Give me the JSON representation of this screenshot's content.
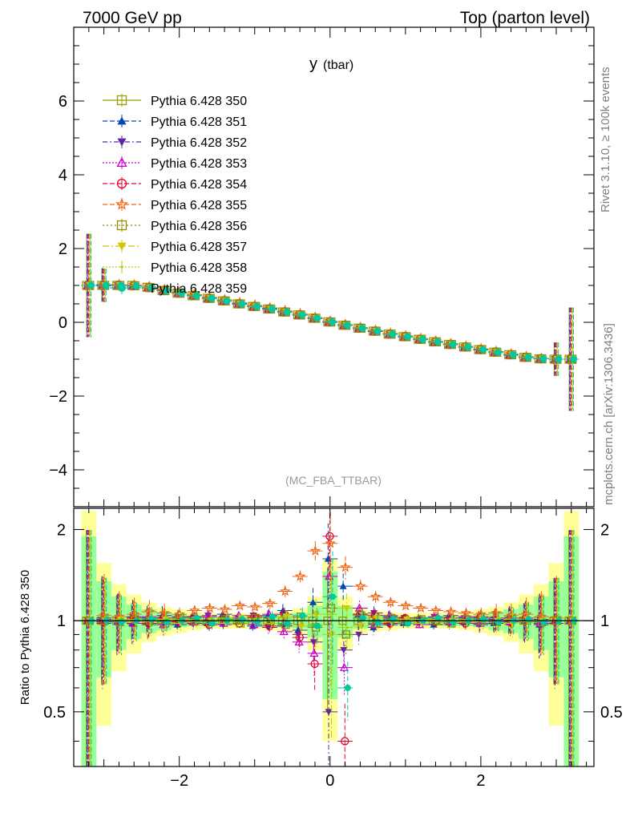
{
  "header": {
    "left": "7000 GeV pp",
    "right": "Top (parton level)"
  },
  "side_labels": {
    "top": "Rivet 3.1.10, ≥ 100k events",
    "bottom": "mcplots.cern.ch [arXiv:1306.3436]"
  },
  "analysis_label": "(MC_FBA_TTBAR)",
  "chart_data": [
    {
      "type": "scatter",
      "panel": "main",
      "title": "y",
      "title_suffix": "(tbar)",
      "xlim": [
        -3.4,
        3.5
      ],
      "ylim": [
        -5,
        8
      ],
      "yticks": [
        -4,
        -2,
        0,
        2,
        4,
        6
      ],
      "ytick_labels": [
        "−4",
        "−2",
        "0",
        "2",
        "4",
        "6"
      ],
      "xticks": [
        -2,
        0,
        2
      ],
      "grid": false,
      "legend_position": "top-left",
      "x": [
        -3.2,
        -3.0,
        -2.8,
        -2.6,
        -2.4,
        -2.2,
        -2.0,
        -1.8,
        -1.6,
        -1.4,
        -1.2,
        -1.0,
        -0.8,
        -0.6,
        -0.4,
        -0.2,
        0.0,
        0.2,
        0.4,
        0.6,
        0.8,
        1.0,
        1.2,
        1.4,
        1.6,
        1.8,
        2.0,
        2.2,
        2.4,
        2.6,
        2.8,
        3.0,
        3.2
      ],
      "series": [
        {
          "name": "Pythia 6.428 350",
          "color": "#999900",
          "marker": "open-square",
          "dash": "solid",
          "values": [
            1.0,
            1.0,
            1.0,
            1.0,
            0.95,
            0.86,
            0.79,
            0.72,
            0.65,
            0.58,
            0.5,
            0.43,
            0.36,
            0.28,
            0.2,
            0.11,
            0.01,
            -0.08,
            -0.16,
            -0.24,
            -0.32,
            -0.39,
            -0.46,
            -0.53,
            -0.6,
            -0.67,
            -0.74,
            -0.81,
            -0.88,
            -0.95,
            -0.99,
            -1.0,
            -1.0
          ]
        },
        {
          "name": "Pythia 6.428 351",
          "color": "#0046b4",
          "marker": "filled-triangle-up",
          "dash": "6,3",
          "values": [
            1.0,
            1.02,
            1.01,
            0.99,
            0.94,
            0.87,
            0.8,
            0.73,
            0.66,
            0.59,
            0.51,
            0.44,
            0.37,
            0.29,
            0.21,
            0.12,
            0.02,
            -0.07,
            -0.15,
            -0.23,
            -0.31,
            -0.38,
            -0.45,
            -0.52,
            -0.59,
            -0.66,
            -0.73,
            -0.8,
            -0.87,
            -0.94,
            -0.98,
            -1.0,
            -1.0
          ]
        },
        {
          "name": "Pythia 6.428 352",
          "color": "#5a28a0",
          "marker": "filled-triangle-down",
          "dash": "6,3,2,3",
          "values": [
            1.0,
            0.99,
            1.0,
            0.98,
            0.93,
            0.86,
            0.79,
            0.72,
            0.64,
            0.57,
            0.49,
            0.42,
            0.35,
            0.27,
            0.19,
            0.1,
            0.0,
            -0.09,
            -0.17,
            -0.25,
            -0.33,
            -0.4,
            -0.47,
            -0.54,
            -0.61,
            -0.68,
            -0.75,
            -0.82,
            -0.89,
            -0.96,
            -0.99,
            -1.0,
            -1.0
          ]
        },
        {
          "name": "Pythia 6.428 353",
          "color": "#c800c8",
          "marker": "open-triangle-up",
          "dash": "2,2",
          "values": [
            1.0,
            1.01,
            1.0,
            0.99,
            0.95,
            0.87,
            0.8,
            0.73,
            0.65,
            0.58,
            0.5,
            0.43,
            0.36,
            0.28,
            0.2,
            0.11,
            0.01,
            -0.08,
            -0.16,
            -0.24,
            -0.32,
            -0.39,
            -0.46,
            -0.53,
            -0.6,
            -0.67,
            -0.74,
            -0.81,
            -0.88,
            -0.95,
            -0.99,
            -1.0,
            -1.0
          ]
        },
        {
          "name": "Pythia 6.428 354",
          "color": "#e6002d",
          "marker": "open-circle",
          "dash": "6,3",
          "values": [
            1.0,
            1.0,
            1.01,
            0.99,
            0.94,
            0.86,
            0.79,
            0.72,
            0.65,
            0.58,
            0.5,
            0.43,
            0.36,
            0.28,
            0.2,
            0.11,
            0.01,
            -0.08,
            -0.16,
            -0.24,
            -0.32,
            -0.39,
            -0.46,
            -0.53,
            -0.6,
            -0.67,
            -0.74,
            -0.81,
            -0.88,
            -0.95,
            -0.99,
            -1.0,
            -1.0
          ]
        },
        {
          "name": "Pythia 6.428 355",
          "color": "#f06414",
          "marker": "open-star",
          "dash": "6,3",
          "values": [
            1.0,
            1.01,
            1.02,
            1.01,
            0.96,
            0.89,
            0.82,
            0.75,
            0.68,
            0.61,
            0.53,
            0.46,
            0.39,
            0.31,
            0.23,
            0.13,
            0.03,
            -0.06,
            -0.14,
            -0.22,
            -0.3,
            -0.37,
            -0.44,
            -0.51,
            -0.58,
            -0.65,
            -0.72,
            -0.79,
            -0.86,
            -0.93,
            -0.98,
            -1.0,
            -1.0
          ]
        },
        {
          "name": "Pythia 6.428 356",
          "color": "#8c8c00",
          "marker": "open-square",
          "dash": "2,3",
          "values": [
            1.0,
            1.0,
            1.0,
            0.99,
            0.94,
            0.86,
            0.79,
            0.72,
            0.65,
            0.58,
            0.5,
            0.43,
            0.36,
            0.28,
            0.2,
            0.11,
            0.01,
            -0.08,
            -0.16,
            -0.24,
            -0.32,
            -0.39,
            -0.46,
            -0.53,
            -0.6,
            -0.67,
            -0.74,
            -0.81,
            -0.88,
            -0.95,
            -0.99,
            -1.0,
            -1.0
          ]
        },
        {
          "name": "Pythia 6.428 357",
          "color": "#d2c800",
          "marker": "filled-triangle-down-small",
          "dash": "8,3,2,3",
          "values": [
            1.0,
            1.0,
            1.0,
            0.99,
            0.94,
            0.86,
            0.79,
            0.72,
            0.65,
            0.58,
            0.5,
            0.43,
            0.36,
            0.28,
            0.2,
            0.11,
            0.01,
            -0.08,
            -0.16,
            -0.24,
            -0.32,
            -0.39,
            -0.46,
            -0.53,
            -0.6,
            -0.67,
            -0.74,
            -0.81,
            -0.88,
            -0.95,
            -0.99,
            -1.0,
            -1.0
          ]
        },
        {
          "name": "Pythia 6.428 358",
          "color": "#a0d200",
          "marker": "dot",
          "dash": "2,2",
          "values": [
            1.0,
            1.0,
            1.0,
            0.99,
            0.94,
            0.86,
            0.79,
            0.72,
            0.65,
            0.58,
            0.5,
            0.43,
            0.36,
            0.28,
            0.2,
            0.11,
            0.01,
            -0.08,
            -0.16,
            -0.24,
            -0.32,
            -0.39,
            -0.46,
            -0.53,
            -0.6,
            -0.67,
            -0.74,
            -0.81,
            -0.88,
            -0.95,
            -0.99,
            -1.0,
            -1.0
          ]
        },
        {
          "name": "Pythia 6.428 359",
          "color": "#00c8a0",
          "marker": "filled-circle",
          "dash": "6,3",
          "values": [
            1.0,
            1.0,
            1.0,
            0.99,
            0.94,
            0.86,
            0.79,
            0.72,
            0.65,
            0.58,
            0.5,
            0.43,
            0.36,
            0.28,
            0.2,
            0.11,
            0.01,
            -0.08,
            -0.16,
            -0.24,
            -0.32,
            -0.39,
            -0.46,
            -0.53,
            -0.6,
            -0.67,
            -0.74,
            -0.81,
            -0.88,
            -0.95,
            -0.99,
            -1.0,
            -1.0
          ]
        }
      ]
    },
    {
      "type": "scatter",
      "panel": "ratio",
      "ylabel": "Ratio to Pythia 6.428 350",
      "ylim": [
        0.33,
        2.35
      ],
      "log_y": true,
      "yticks": [
        0.5,
        1,
        2
      ],
      "ytick_labels": [
        "0.5",
        "1",
        "2"
      ],
      "xlim": [
        -3.4,
        3.5
      ],
      "xticks": [
        -2,
        0,
        2
      ],
      "xtick_labels": [
        "−2",
        "0",
        "2"
      ],
      "reference_line": 1,
      "x": [
        -3.2,
        -3.0,
        -2.8,
        -2.6,
        -2.4,
        -2.2,
        -2.0,
        -1.8,
        -1.6,
        -1.4,
        -1.2,
        -1.0,
        -0.8,
        -0.6,
        -0.4,
        -0.2,
        0.0,
        0.2,
        0.4,
        0.6,
        0.8,
        1.0,
        1.2,
        1.4,
        1.6,
        1.8,
        2.0,
        2.2,
        2.4,
        2.6,
        2.8,
        3.0,
        3.2
      ],
      "band_yellow_halfwidth": [
        1.3,
        0.55,
        0.32,
        0.22,
        0.15,
        0.11,
        0.09,
        0.07,
        0.06,
        0.06,
        0.06,
        0.06,
        0.07,
        0.08,
        0.1,
        0.2,
        0.6,
        0.2,
        0.1,
        0.08,
        0.07,
        0.06,
        0.06,
        0.06,
        0.06,
        0.07,
        0.09,
        0.11,
        0.15,
        0.22,
        0.32,
        0.55,
        1.3
      ],
      "band_green_halfwidth": [
        0.9,
        0.35,
        0.2,
        0.13,
        0.09,
        0.07,
        0.05,
        0.04,
        0.04,
        0.03,
        0.03,
        0.03,
        0.04,
        0.05,
        0.06,
        0.12,
        0.45,
        0.12,
        0.06,
        0.05,
        0.04,
        0.03,
        0.03,
        0.03,
        0.04,
        0.04,
        0.05,
        0.07,
        0.09,
        0.13,
        0.2,
        0.35,
        0.9
      ],
      "series_ratios": [
        [
          1.0,
          1.0,
          1.0,
          1.0,
          1.0,
          1.0,
          1.0,
          1.0,
          1.0,
          1.0,
          1.0,
          1.0,
          1.0,
          1.0,
          1.0,
          1.0,
          1.0,
          1.0,
          1.0,
          1.0,
          1.0,
          1.0,
          1.0,
          1.0,
          1.0,
          1.0,
          1.0,
          1.0,
          1.0,
          1.0,
          1.0,
          1.0,
          1.0
        ],
        [
          1.0,
          1.02,
          0.99,
          0.98,
          1.02,
          1.04,
          0.97,
          1.03,
          0.98,
          1.05,
          1.01,
          0.96,
          1.04,
          1.08,
          0.93,
          1.15,
          1.6,
          1.3,
          1.05,
          0.95,
          1.03,
          0.98,
          1.02,
          0.97,
          1.04,
          0.99,
          1.02,
          0.98,
          1.01,
          1.0,
          0.97,
          1.0,
          1.0
        ],
        [
          1.0,
          0.98,
          1.01,
          1.03,
          0.97,
          0.99,
          1.03,
          0.98,
          1.04,
          0.97,
          1.02,
          1.04,
          0.95,
          0.96,
          0.9,
          0.85,
          0.5,
          0.8,
          0.9,
          1.06,
          0.97,
          1.02,
          0.98,
          1.03,
          0.98,
          1.02,
          0.97,
          1.01,
          1.02,
          0.99,
          1.01,
          0.98,
          1.0
        ],
        [
          1.0,
          1.01,
          1.0,
          0.98,
          1.03,
          0.97,
          1.02,
          0.99,
          1.03,
          0.98,
          1.04,
          0.97,
          1.05,
          0.92,
          0.85,
          0.78,
          1.4,
          0.7,
          1.1,
          0.97,
          1.04,
          1.0,
          0.97,
          1.02,
          0.99,
          1.03,
          0.98,
          1.02,
          0.99,
          1.01,
          0.98,
          1.0,
          1.0
        ],
        [
          1.0,
          0.99,
          1.01,
          1.02,
          0.98,
          1.02,
          0.99,
          1.03,
          0.97,
          1.02,
          0.98,
          1.03,
          0.96,
          1.05,
          0.88,
          0.72,
          1.9,
          0.4,
          1.05,
          1.04,
          0.98,
          1.02,
          1.01,
          0.99,
          1.02,
          0.98,
          1.03,
          0.99,
          1.0,
          1.02,
          0.99,
          1.0,
          1.0
        ],
        [
          1.0,
          1.04,
          1.03,
          1.05,
          1.07,
          1.06,
          1.05,
          1.08,
          1.1,
          1.09,
          1.12,
          1.11,
          1.14,
          1.25,
          1.4,
          1.7,
          1.8,
          1.5,
          1.3,
          1.2,
          1.15,
          1.12,
          1.1,
          1.08,
          1.07,
          1.06,
          1.05,
          1.06,
          1.04,
          1.05,
          1.03,
          1.02,
          1.0
        ],
        [
          1.0,
          1.0,
          0.99,
          1.01,
          1.0,
          0.98,
          1.02,
          1.0,
          0.99,
          1.01,
          0.98,
          1.02,
          1.0,
          0.97,
          1.03,
          0.95,
          1.1,
          0.9,
          1.04,
          0.98,
          1.02,
          0.99,
          1.01,
          1.0,
          0.98,
          1.01,
          1.0,
          0.99,
          1.01,
          1.0,
          0.99,
          1.0,
          1.0
        ],
        [
          1.0,
          1.0,
          1.01,
          0.99,
          1.0,
          1.01,
          0.98,
          1.01,
          1.0,
          0.98,
          1.02,
          0.99,
          1.0,
          1.03,
          0.96,
          1.05,
          0.9,
          1.1,
          0.96,
          1.02,
          0.99,
          1.01,
          0.98,
          1.01,
          1.0,
          0.99,
          1.01,
          1.0,
          0.98,
          1.01,
          1.0,
          1.0,
          1.0
        ],
        [
          1.0,
          1.0,
          1.0,
          1.01,
          0.99,
          1.0,
          1.01,
          0.99,
          1.0,
          1.02,
          0.99,
          1.0,
          0.98,
          1.02,
          1.0,
          0.97,
          1.05,
          0.95,
          1.02,
          1.0,
          0.99,
          1.0,
          1.01,
          0.99,
          1.0,
          1.01,
          0.99,
          1.0,
          1.01,
          0.99,
          1.0,
          1.0,
          1.0
        ],
        [
          1.0,
          1.0,
          0.99,
          1.0,
          1.01,
          0.99,
          1.0,
          1.02,
          0.98,
          1.0,
          1.01,
          0.99,
          1.03,
          0.98,
          1.04,
          0.96,
          1.2,
          0.6,
          1.02,
          0.99,
          1.01,
          0.98,
          1.0,
          1.02,
          0.99,
          1.0,
          1.01,
          0.99,
          1.0,
          1.01,
          0.99,
          1.0,
          1.0
        ]
      ]
    }
  ]
}
